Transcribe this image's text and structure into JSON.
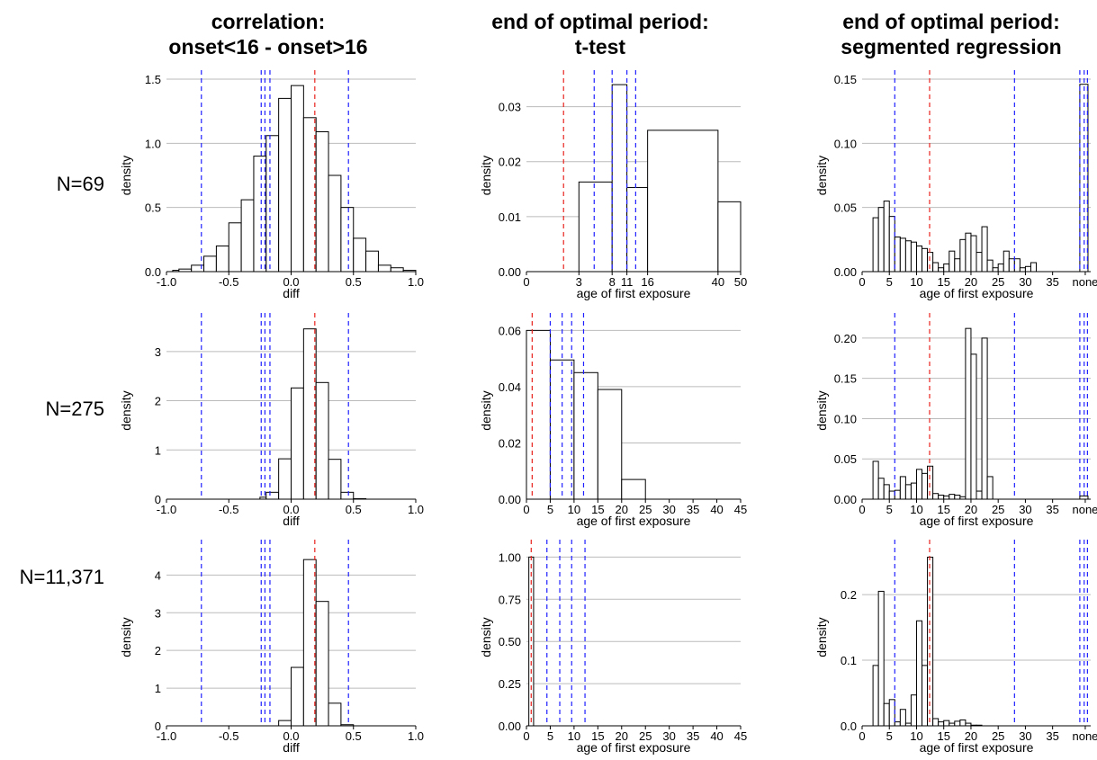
{
  "column_titles": [
    {
      "line1": "correlation:",
      "line2": "onset<16 - onset>16"
    },
    {
      "line1": "end of optimal period:",
      "line2": "t-test"
    },
    {
      "line1": "end of optimal period:",
      "line2": "segmented regression"
    }
  ],
  "row_labels": [
    "N=69",
    "N=275",
    "N=11,371"
  ],
  "colors": {
    "blue_line": "#1f1fff",
    "red_line": "#e8231e",
    "grid": "#bbbbbb",
    "bar_edge": "#000000"
  },
  "chart_data": [
    {
      "type": "bar",
      "panel": "r1c1",
      "ylabel": "density",
      "xlabel": "diff",
      "xlim": [
        -1.0,
        1.0
      ],
      "ylim": [
        0,
        1.5
      ],
      "xticks": [
        "-1.0",
        "-0.5",
        "0.0",
        "0.5",
        "1.0"
      ],
      "yticks": [
        "0.0",
        "0.5",
        "1.0",
        "1.5"
      ],
      "bins": [
        [
          -0.95,
          -0.9,
          0.01
        ],
        [
          -0.9,
          -0.8,
          0.02
        ],
        [
          -0.8,
          -0.7,
          0.05
        ],
        [
          -0.7,
          -0.6,
          0.12
        ],
        [
          -0.6,
          -0.5,
          0.2
        ],
        [
          -0.5,
          -0.4,
          0.38
        ],
        [
          -0.4,
          -0.3,
          0.56
        ],
        [
          -0.3,
          -0.2,
          0.9
        ],
        [
          -0.2,
          -0.1,
          1.06
        ],
        [
          -0.1,
          0.0,
          1.35
        ],
        [
          0.0,
          0.1,
          1.45
        ],
        [
          0.1,
          0.2,
          1.2
        ],
        [
          0.2,
          0.3,
          1.09
        ],
        [
          0.3,
          0.4,
          0.75
        ],
        [
          0.4,
          0.5,
          0.5
        ],
        [
          0.5,
          0.6,
          0.26
        ],
        [
          0.6,
          0.7,
          0.16
        ],
        [
          0.7,
          0.8,
          0.05
        ],
        [
          0.8,
          0.9,
          0.03
        ],
        [
          0.9,
          1.0,
          0.01
        ]
      ],
      "blue_lines": [
        -0.72,
        -0.24,
        -0.21,
        -0.17,
        0.46
      ],
      "red_lines": [
        0.19
      ]
    },
    {
      "type": "bar",
      "panel": "r1c2",
      "ylabel": "density",
      "xlabel": "age of first exposure",
      "xlim": [
        0,
        50
      ],
      "ylim": [
        0,
        0.035
      ],
      "x_scale": "sqrt",
      "xticks": [
        "0",
        "3",
        "8",
        "11",
        "16",
        "40",
        "50"
      ],
      "yticks": [
        "0.00",
        "0.01",
        "0.02",
        "0.03"
      ],
      "bins": [
        [
          0,
          3,
          0.0
        ],
        [
          3,
          8,
          0.0163
        ],
        [
          8,
          11,
          0.034
        ],
        [
          11,
          16,
          0.0153
        ],
        [
          16,
          40,
          0.0257
        ],
        [
          40,
          50,
          0.0127
        ]
      ],
      "blue_lines": [
        5,
        8,
        11,
        13
      ],
      "red_lines": [
        1.5
      ]
    },
    {
      "type": "bar",
      "panel": "r1c3",
      "ylabel": "density",
      "xlabel": "age of first exposure",
      "xlim": [
        0,
        42
      ],
      "ylim": [
        0,
        0.15
      ],
      "xticks": [
        "0",
        "5",
        "10",
        "15",
        "20",
        "25",
        "30",
        "35",
        "none"
      ],
      "yticks": [
        "0.00",
        "0.05",
        "0.10",
        "0.15"
      ],
      "bins": [
        [
          2,
          3,
          0.042
        ],
        [
          3,
          4,
          0.05
        ],
        [
          4,
          5,
          0.055
        ],
        [
          5,
          6,
          0.043
        ],
        [
          6,
          7,
          0.027
        ],
        [
          7,
          8,
          0.026
        ],
        [
          8,
          9,
          0.024
        ],
        [
          9,
          10,
          0.023
        ],
        [
          10,
          11,
          0.02
        ],
        [
          11,
          12,
          0.018
        ],
        [
          12,
          13,
          0.015
        ],
        [
          13,
          14,
          0.007
        ],
        [
          14,
          15,
          0.003
        ],
        [
          15,
          16,
          0.006
        ],
        [
          16,
          17,
          0.016
        ],
        [
          17,
          18,
          0.01
        ],
        [
          18,
          19,
          0.025
        ],
        [
          19,
          20,
          0.03
        ],
        [
          20,
          21,
          0.028
        ],
        [
          21,
          22,
          0.015
        ],
        [
          22,
          23,
          0.035
        ],
        [
          23,
          24,
          0.009
        ],
        [
          24,
          25,
          0.003
        ],
        [
          25,
          26,
          0.006
        ],
        [
          26,
          27,
          0.016
        ],
        [
          27,
          28,
          0.01
        ],
        [
          28,
          29,
          0.01
        ],
        [
          29,
          30,
          0.003
        ],
        [
          30,
          31,
          0.004
        ],
        [
          31,
          32,
          0.007
        ],
        [
          40,
          41.5,
          0.146
        ]
      ],
      "blue_lines": [
        6,
        28,
        40,
        40.8,
        41.4
      ],
      "red_lines": [
        12.4
      ]
    },
    {
      "type": "bar",
      "panel": "r2c1",
      "ylabel": "density",
      "xlabel": "diff",
      "xlim": [
        -1.0,
        1.0
      ],
      "ylim": [
        0,
        3.6
      ],
      "xticks": [
        "-1.0",
        "-0.5",
        "0.0",
        "0.5",
        "1.0"
      ],
      "yticks": [
        "0",
        "1",
        "2",
        "3"
      ],
      "bins": [
        [
          -0.25,
          -0.2,
          0.04
        ],
        [
          -0.2,
          -0.1,
          0.14
        ],
        [
          -0.1,
          0.0,
          0.82
        ],
        [
          0.0,
          0.1,
          2.26
        ],
        [
          0.1,
          0.2,
          3.46
        ],
        [
          0.2,
          0.3,
          2.37
        ],
        [
          0.3,
          0.4,
          0.81
        ],
        [
          0.4,
          0.5,
          0.14
        ],
        [
          0.5,
          0.6,
          0.01
        ]
      ],
      "blue_lines": [
        -0.72,
        -0.24,
        -0.21,
        -0.17,
        0.46
      ],
      "red_lines": [
        0.19
      ]
    },
    {
      "type": "bar",
      "panel": "r2c2",
      "ylabel": "density",
      "xlabel": "age of first exposure",
      "xlim": [
        0,
        45
      ],
      "ylim": [
        0,
        0.063
      ],
      "xticks": [
        "0",
        "5",
        "10",
        "15",
        "20",
        "25",
        "30",
        "35",
        "40",
        "45"
      ],
      "yticks": [
        "0.00",
        "0.02",
        "0.04",
        "0.06"
      ],
      "bins": [
        [
          0,
          5,
          0.06
        ],
        [
          5,
          10,
          0.0495
        ],
        [
          10,
          15,
          0.045
        ],
        [
          15,
          20,
          0.039
        ],
        [
          20,
          25,
          0.007
        ]
      ],
      "blue_lines": [
        5,
        7.5,
        9.5,
        12
      ],
      "red_lines": [
        1.2
      ]
    },
    {
      "type": "bar",
      "panel": "r2c3",
      "ylabel": "density",
      "xlabel": "age of first exposure",
      "xlim": [
        0,
        42
      ],
      "ylim": [
        0,
        0.22
      ],
      "xticks": [
        "0",
        "5",
        "10",
        "15",
        "20",
        "25",
        "30",
        "35",
        "none"
      ],
      "yticks": [
        "0.00",
        "0.05",
        "0.10",
        "0.15",
        "0.20"
      ],
      "bins": [
        [
          2,
          3,
          0.047
        ],
        [
          3,
          4,
          0.026
        ],
        [
          4,
          5,
          0.018
        ],
        [
          5,
          6,
          0.01
        ],
        [
          6,
          7,
          0.011
        ],
        [
          7,
          8,
          0.028
        ],
        [
          8,
          9,
          0.018
        ],
        [
          9,
          10,
          0.02
        ],
        [
          10,
          11,
          0.037
        ],
        [
          11,
          12,
          0.032
        ],
        [
          12,
          13,
          0.041
        ],
        [
          13,
          14,
          0.007
        ],
        [
          14,
          15,
          0.005
        ],
        [
          15,
          16,
          0.004
        ],
        [
          16,
          17,
          0.006
        ],
        [
          17,
          18,
          0.005
        ],
        [
          18,
          19,
          0.003
        ],
        [
          19,
          20,
          0.212
        ],
        [
          20,
          21,
          0.18
        ],
        [
          21,
          22,
          0.01
        ],
        [
          22,
          23,
          0.2
        ],
        [
          23,
          24,
          0.028
        ],
        [
          40,
          41.5,
          0.004
        ]
      ],
      "blue_lines": [
        6,
        28,
        40,
        40.8,
        41.4
      ],
      "red_lines": [
        12.4
      ]
    },
    {
      "type": "bar",
      "panel": "r3c1",
      "ylabel": "density",
      "xlabel": "diff",
      "xlim": [
        -1.0,
        1.0
      ],
      "ylim": [
        0,
        4.7
      ],
      "xticks": [
        "-1.0",
        "-0.5",
        "0.0",
        "0.5",
        "1.0"
      ],
      "yticks": [
        "0",
        "1",
        "2",
        "3",
        "4"
      ],
      "bins": [
        [
          -0.1,
          0.0,
          0.14
        ],
        [
          0.0,
          0.1,
          1.55
        ],
        [
          0.1,
          0.2,
          4.41
        ],
        [
          0.2,
          0.3,
          3.3
        ],
        [
          0.3,
          0.4,
          0.6
        ],
        [
          0.4,
          0.5,
          0.03
        ]
      ],
      "blue_lines": [
        -0.72,
        -0.24,
        -0.21,
        -0.17,
        0.46
      ],
      "red_lines": [
        0.19
      ]
    },
    {
      "type": "bar",
      "panel": "r3c2",
      "ylabel": "density",
      "xlabel": "age of first exposure",
      "xlim": [
        0,
        45
      ],
      "ylim": [
        0,
        1.05
      ],
      "xticks": [
        "0",
        "5",
        "10",
        "15",
        "20",
        "25",
        "30",
        "35",
        "40",
        "45"
      ],
      "yticks": [
        "0.00",
        "0.25",
        "0.50",
        "0.75",
        "1.00"
      ],
      "bins": [
        [
          0.5,
          1.5,
          1.0
        ]
      ],
      "blue_lines": [
        4.3,
        7,
        9.5,
        12.3
      ],
      "red_lines": [
        1.0
      ]
    },
    {
      "type": "bar",
      "panel": "r3c3",
      "ylabel": "density",
      "xlabel": "age of first exposure",
      "xlim": [
        0,
        42
      ],
      "ylim": [
        0,
        0.27
      ],
      "xticks": [
        "0",
        "5",
        "10",
        "15",
        "20",
        "25",
        "30",
        "35",
        "none"
      ],
      "yticks": [
        "0.0",
        "0.1",
        "0.2"
      ],
      "bins": [
        [
          2,
          3,
          0.092
        ],
        [
          3,
          4,
          0.205
        ],
        [
          4,
          5,
          0.034
        ],
        [
          5,
          6,
          0.04
        ],
        [
          6,
          7,
          0.006
        ],
        [
          7,
          8,
          0.025
        ],
        [
          8,
          9,
          0.004
        ],
        [
          9,
          10,
          0.047
        ],
        [
          10,
          11,
          0.16
        ],
        [
          11,
          12,
          0.092
        ],
        [
          12,
          13,
          0.257
        ],
        [
          13,
          14,
          0.011
        ],
        [
          14,
          15,
          0.006
        ],
        [
          15,
          16,
          0.008
        ],
        [
          16,
          17,
          0.004
        ],
        [
          17,
          18,
          0.007
        ],
        [
          18,
          19,
          0.009
        ],
        [
          19,
          20,
          0.004
        ],
        [
          20,
          21,
          0.001
        ],
        [
          21,
          22,
          0.001
        ]
      ],
      "blue_lines": [
        6,
        28,
        40,
        40.8,
        41.4
      ],
      "red_lines": [
        12.4
      ]
    }
  ]
}
